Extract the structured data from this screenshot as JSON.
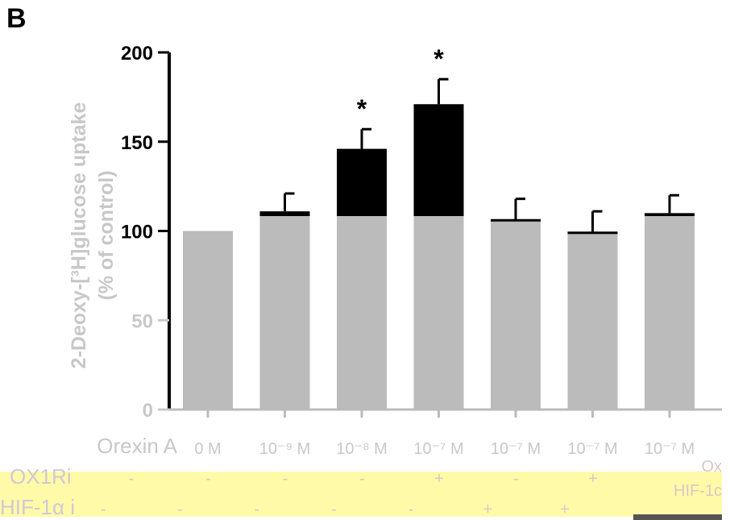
{
  "panel_label": "B",
  "colors": {
    "treated": "#000000",
    "baseline": "#bbbbbb",
    "axis": "#000000",
    "treatment_band": "#fffaa8",
    "label_faded": "#c8c8c8"
  },
  "chart_data": {
    "type": "bar",
    "ylabel_line1": "2-Deoxy-[³H]glucose uptake",
    "ylabel_line2": "(% of control)",
    "ylim": [
      0,
      200
    ],
    "yticks": [
      "0",
      "50",
      "100",
      "150",
      "200"
    ],
    "grid": false,
    "categories": [
      "0 M",
      "10⁻⁹ M",
      "10⁻⁸ M",
      "10⁻⁷ M",
      "10⁻⁷ M",
      "10⁻⁷ M",
      "10⁻⁷ M"
    ],
    "values": [
      100,
      111,
      146,
      171,
      106,
      99,
      110
    ],
    "errors": [
      0,
      10,
      11,
      14,
      12,
      12,
      10
    ],
    "significance": [
      "",
      "",
      "*",
      "*",
      "",
      "",
      ""
    ],
    "treatment_rows": [
      {
        "label": "Orexin A",
        "values": [
          "0 M",
          "10⁻⁹ M",
          "10⁻⁸ M",
          "10⁻⁷ M",
          "10⁻⁷ M",
          "10⁻⁷ M",
          "10⁻⁷ M"
        ]
      },
      {
        "label": "OX1Ri",
        "values": [
          "-",
          "-",
          "-",
          "-",
          "+",
          "-",
          "+"
        ]
      },
      {
        "label": "HIF-1α i",
        "values": [
          "-",
          "-",
          "-",
          "-",
          "-",
          "+",
          "+"
        ]
      }
    ],
    "right_labels": [
      "Ox",
      "HIF-1c"
    ]
  }
}
